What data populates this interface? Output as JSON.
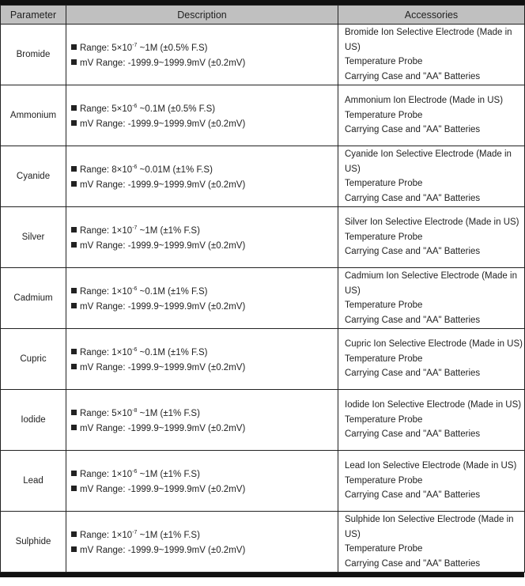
{
  "headers": [
    "Parameter",
    "Description",
    "Accessories"
  ],
  "rows": [
    {
      "parameter": "Bromide",
      "range_prefix": "Range: 5×10",
      "range_exp": "-7",
      "range_suffix": " ~1M (±0.5% F.S)",
      "mv_range": "mV Range: -1999.9~1999.9mV (±0.2mV)",
      "accessories": [
        "Bromide Ion Selective Electrode (Made in US)",
        "Temperature Probe",
        "Carrying Case and \"AA\" Batteries"
      ]
    },
    {
      "parameter": "Ammonium",
      "range_prefix": "Range: 5×10",
      "range_exp": "-6",
      "range_suffix": " ~0.1M (±0.5% F.S)",
      "mv_range": "mV Range: -1999.9~1999.9mV (±0.2mV)",
      "accessories": [
        "Ammonium Ion Electrode (Made in US)",
        "Temperature Probe",
        "Carrying Case and \"AA\" Batteries"
      ]
    },
    {
      "parameter": "Cyanide",
      "range_prefix": "Range: 8×10",
      "range_exp": "-6",
      "range_suffix": " ~0.01M (±1% F.S)",
      "mv_range": "mV Range: -1999.9~1999.9mV (±0.2mV)",
      "accessories": [
        "Cyanide Ion Selective Electrode (Made in US)",
        "Temperature Probe",
        "Carrying Case and \"AA\" Batteries"
      ]
    },
    {
      "parameter": "Silver",
      "range_prefix": "Range: 1×10",
      "range_exp": "-7",
      "range_suffix": " ~1M (±1% F.S)",
      "mv_range": "mV Range: -1999.9~1999.9mV (±0.2mV)",
      "accessories": [
        "Silver Ion Selective Electrode (Made in US)",
        "Temperature Probe",
        "Carrying Case and \"AA\" Batteries"
      ]
    },
    {
      "parameter": "Cadmium",
      "range_prefix": "Range: 1×10",
      "range_exp": "-6",
      "range_suffix": " ~0.1M (±1% F.S)",
      "mv_range": "mV Range: -1999.9~1999.9mV (±0.2mV)",
      "accessories": [
        "Cadmium Ion Selective Electrode (Made in US)",
        "Temperature Probe",
        "Carrying Case and \"AA\" Batteries"
      ]
    },
    {
      "parameter": "Cupric",
      "range_prefix": "Range: 1×10",
      "range_exp": "-6",
      "range_suffix": " ~0.1M (±1% F.S)",
      "mv_range": "mV Range: -1999.9~1999.9mV (±0.2mV)",
      "accessories": [
        "Cupric Ion Selective Electrode (Made in US)",
        "Temperature Probe",
        "Carrying Case and \"AA\" Batteries"
      ]
    },
    {
      "parameter": "Iodide",
      "range_prefix": "Range: 5×10",
      "range_exp": "-8",
      "range_suffix": " ~1M (±1% F.S)",
      "mv_range": "mV Range: -1999.9~1999.9mV (±0.2mV)",
      "accessories": [
        "Iodide Ion Selective Electrode (Made in US)",
        "Temperature Probe",
        "Carrying Case and \"AA\" Batteries"
      ]
    },
    {
      "parameter": "Lead",
      "range_prefix": "Range: 1×10",
      "range_exp": "-6",
      "range_suffix": " ~1M (±1% F.S)",
      "mv_range": "mV Range: -1999.9~1999.9mV (±0.2mV)",
      "accessories": [
        "Lead Ion Selective Electrode (Made in US)",
        "Temperature Probe",
        "Carrying Case and \"AA\" Batteries"
      ]
    },
    {
      "parameter": "Sulphide",
      "range_prefix": "Range: 1×10",
      "range_exp": "-7",
      "range_suffix": " ~1M (±1% F.S)",
      "mv_range": "mV Range: -1999.9~1999.9mV (±0.2mV)",
      "accessories": [
        "Sulphide Ion Selective Electrode (Made in US)",
        "Temperature Probe",
        "Carrying Case and \"AA\" Batteries"
      ]
    }
  ]
}
